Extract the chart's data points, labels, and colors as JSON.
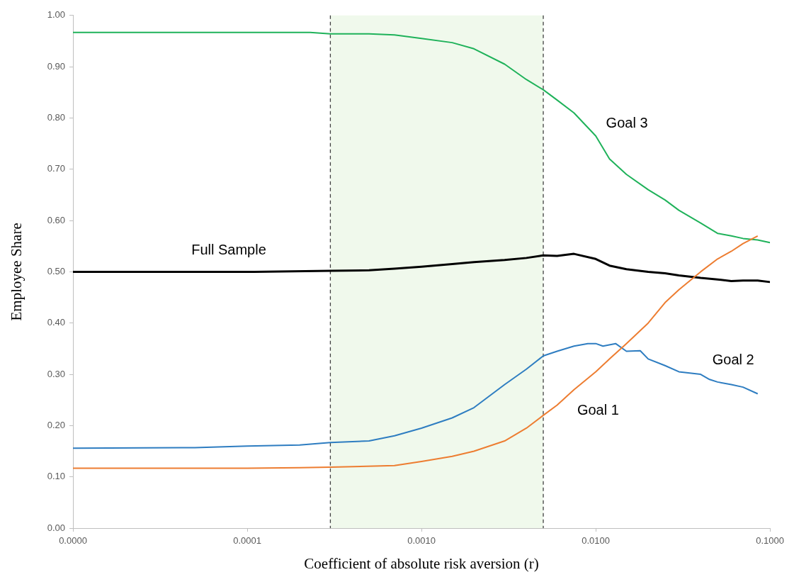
{
  "chart_data": {
    "type": "line",
    "xlabel": "Coefficient of absolute risk aversion (r)",
    "ylabel": "Employee Share",
    "log": "x",
    "grid": false,
    "legend": false,
    "marker": "none",
    "line_style": "solid",
    "xlim": [
      1e-05,
      0.1
    ],
    "xticks": [
      {
        "value": 1e-05,
        "label": "0.0000"
      },
      {
        "value": 0.0001,
        "label": "0.0001"
      },
      {
        "value": 0.001,
        "label": "0.0010"
      },
      {
        "value": 0.01,
        "label": "0.0100"
      },
      {
        "value": 0.1,
        "label": "0.1000"
      }
    ],
    "ylim": [
      0,
      1
    ],
    "yticks": [
      {
        "value": 0,
        "label": "0.00"
      },
      {
        "value": 0.1,
        "label": "0.10"
      },
      {
        "value": 0.2,
        "label": "0.20"
      },
      {
        "value": 0.3,
        "label": "0.30"
      },
      {
        "value": 0.4,
        "label": "0.40"
      },
      {
        "value": 0.5,
        "label": "0.50"
      },
      {
        "value": 0.6,
        "label": "0.60"
      },
      {
        "value": 0.7,
        "label": "0.70"
      },
      {
        "value": 0.8,
        "label": "0.80"
      },
      {
        "value": 0.9,
        "label": "0.90"
      },
      {
        "value": 1,
        "label": "1.00"
      }
    ],
    "ref_lines": [
      {
        "axis": "x",
        "value": 0.0003,
        "color": "#404040",
        "line_style": "dashed"
      },
      {
        "axis": "x",
        "value": 0.005,
        "color": "#404040",
        "line_style": "dashed"
      }
    ],
    "bands": [
      {
        "axis": "x",
        "from": 0.0003,
        "to": 0.005,
        "color": "#f0f9ec"
      }
    ],
    "series": [
      {
        "name": "Goal 1",
        "color": "#ed7d31",
        "x": [
          1e-05,
          0.0001,
          0.0002,
          0.0003,
          0.0007,
          0.001,
          0.0015,
          0.002,
          0.003,
          0.004,
          0.005,
          0.006,
          0.0075,
          0.01,
          0.012,
          0.015,
          0.02,
          0.025,
          0.03,
          0.04,
          0.05,
          0.06,
          0.07,
          0.085
        ],
        "values": [
          0.117,
          0.117,
          0.118,
          0.119,
          0.122,
          0.13,
          0.14,
          0.15,
          0.17,
          0.195,
          0.22,
          0.24,
          0.27,
          0.305,
          0.33,
          0.36,
          0.4,
          0.44,
          0.465,
          0.5,
          0.525,
          0.54,
          0.555,
          0.57
        ]
      },
      {
        "name": "Goal 2",
        "color": "#2e7dc1",
        "x": [
          1e-05,
          5e-05,
          0.0001,
          0.0002,
          0.0003,
          0.0005,
          0.0007,
          0.001,
          0.0015,
          0.002,
          0.003,
          0.004,
          0.005,
          0.006,
          0.0075,
          0.009,
          0.01,
          0.011,
          0.013,
          0.015,
          0.018,
          0.02,
          0.025,
          0.03,
          0.04,
          0.045,
          0.05,
          0.06,
          0.07,
          0.085
        ],
        "values": [
          0.156,
          0.157,
          0.16,
          0.162,
          0.167,
          0.17,
          0.18,
          0.195,
          0.215,
          0.235,
          0.28,
          0.31,
          0.336,
          0.345,
          0.355,
          0.36,
          0.36,
          0.355,
          0.36,
          0.345,
          0.346,
          0.33,
          0.317,
          0.305,
          0.3,
          0.29,
          0.285,
          0.28,
          0.275,
          0.262
        ]
      },
      {
        "name": "Goal 3",
        "color": "#1fb25a",
        "x": [
          1e-05,
          0.00023,
          0.0003,
          0.0005,
          0.0007,
          0.001,
          0.0015,
          0.002,
          0.003,
          0.004,
          0.005,
          0.006,
          0.0075,
          0.01,
          0.012,
          0.015,
          0.02,
          0.025,
          0.03,
          0.04,
          0.05,
          0.06,
          0.07,
          0.085,
          0.1
        ],
        "values": [
          0.967,
          0.967,
          0.964,
          0.964,
          0.962,
          0.955,
          0.947,
          0.935,
          0.905,
          0.875,
          0.855,
          0.835,
          0.81,
          0.765,
          0.72,
          0.69,
          0.66,
          0.64,
          0.62,
          0.595,
          0.575,
          0.57,
          0.565,
          0.562,
          0.557
        ]
      },
      {
        "name": "Full Sample",
        "color": "#000000",
        "x": [
          1e-05,
          0.00011,
          0.0003,
          0.0005,
          0.0007,
          0.001,
          0.0015,
          0.002,
          0.003,
          0.004,
          0.005,
          0.006,
          0.0075,
          0.01,
          0.012,
          0.015,
          0.02,
          0.025,
          0.03,
          0.04,
          0.05,
          0.06,
          0.07,
          0.085,
          0.1
        ],
        "values": [
          0.5,
          0.5,
          0.502,
          0.503,
          0.506,
          0.51,
          0.515,
          0.519,
          0.523,
          0.527,
          0.532,
          0.531,
          0.535,
          0.525,
          0.512,
          0.505,
          0.5,
          0.497,
          0.493,
          0.488,
          0.485,
          0.482,
          0.483,
          0.483,
          0.48
        ]
      }
    ]
  }
}
